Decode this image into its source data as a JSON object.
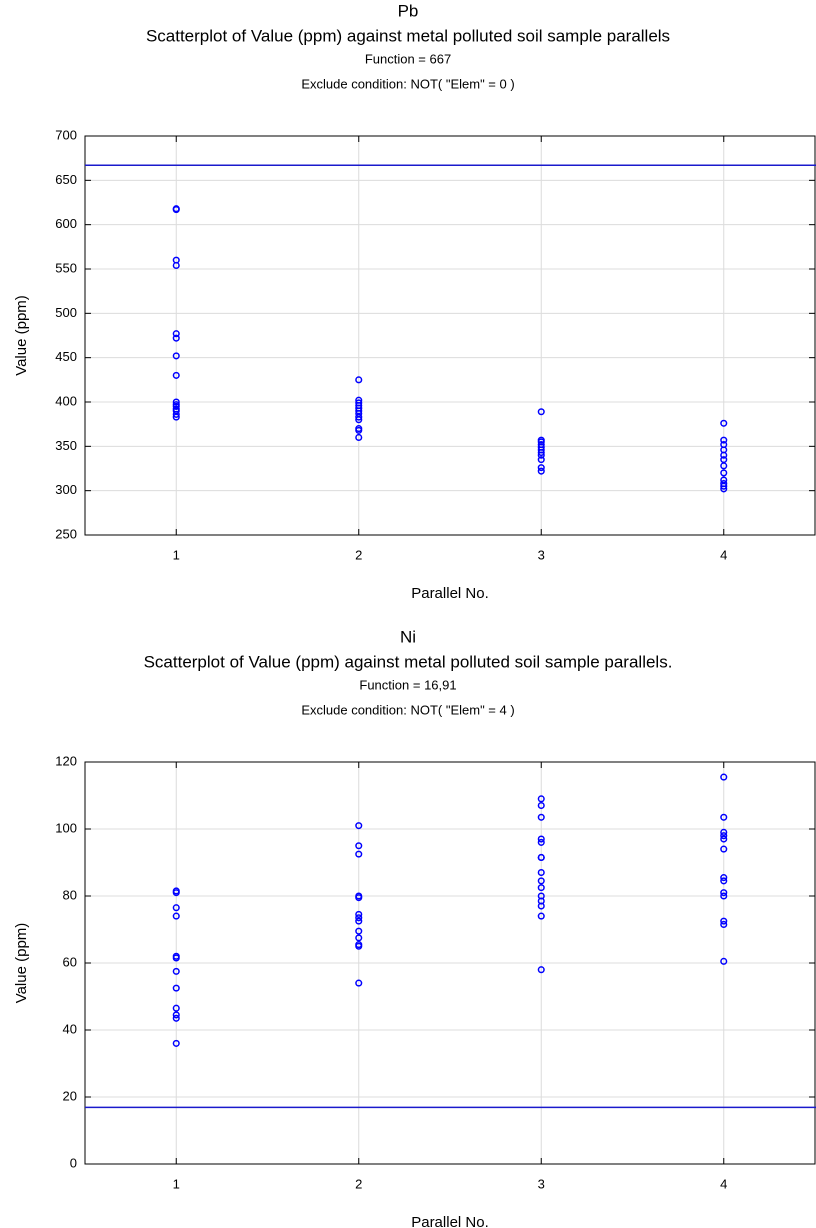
{
  "chart_data": [
    {
      "type": "scatter",
      "element": "Pb",
      "title": "Scatterplot of Value (ppm) against  metal polluted soil sample parallels",
      "subtitle": "Function = 667",
      "note": "Exclude condition: NOT( \"Elem\" = 0 )",
      "xlabel": "Parallel No.",
      "ylabel": "Value (ppm)",
      "reference_line": 667,
      "reference_color": "#1a1acc",
      "color": "#0000ff",
      "grid": true,
      "xlim": [
        0.5,
        4.5
      ],
      "xticks": [
        1,
        2,
        3,
        4
      ],
      "ylim": [
        250,
        700
      ],
      "yticks": [
        250,
        300,
        350,
        400,
        450,
        500,
        550,
        600,
        650,
        700
      ],
      "x": [
        1,
        1,
        1,
        1,
        1,
        1,
        1,
        1,
        1,
        1,
        1,
        1,
        1,
        1,
        1,
        2,
        2,
        2,
        2,
        2,
        2,
        2,
        2,
        2,
        2,
        2,
        2,
        3,
        3,
        3,
        3,
        3,
        3,
        3,
        3,
        3,
        3,
        3,
        4,
        4,
        4,
        4,
        4,
        4,
        4,
        4,
        4,
        4,
        4,
        4
      ],
      "values": [
        618,
        617,
        560,
        554,
        477,
        472,
        452,
        430,
        400,
        397,
        395,
        392,
        390,
        386,
        383,
        425,
        402,
        399,
        396,
        393,
        390,
        387,
        383,
        380,
        370,
        368,
        360,
        389,
        357,
        355,
        352,
        349,
        346,
        343,
        340,
        335,
        326,
        322,
        376,
        357,
        352,
        346,
        340,
        335,
        328,
        320,
        312,
        308,
        305,
        302
      ]
    },
    {
      "type": "scatter",
      "element": "Ni",
      "title": "Scatterplot of Value (ppm) against  metal polluted soil sample parallels.",
      "subtitle": "Function = 16,91",
      "note": "Exclude condition: NOT( \"Elem\" = 4 )",
      "xlabel": "Parallel No.",
      "ylabel": "Value (ppm)",
      "reference_line": 16.91,
      "reference_color": "#1a1acc",
      "color": "#0000ff",
      "grid": true,
      "xlim": [
        0.5,
        4.5
      ],
      "xticks": [
        1,
        2,
        3,
        4
      ],
      "ylim": [
        0,
        120
      ],
      "yticks": [
        0,
        20,
        40,
        60,
        80,
        100,
        120
      ],
      "x": [
        1,
        1,
        1,
        1,
        1,
        1,
        1,
        1,
        1,
        1,
        1,
        1,
        2,
        2,
        2,
        2,
        2,
        2,
        2,
        2,
        2,
        2,
        2,
        2,
        2,
        3,
        3,
        3,
        3,
        3,
        3,
        3,
        3,
        3,
        3,
        3,
        3,
        3,
        3,
        3,
        4,
        4,
        4,
        4,
        4,
        4,
        4,
        4,
        4,
        4,
        4,
        4,
        4
      ],
      "values": [
        81.5,
        81,
        76.5,
        74,
        62,
        61.5,
        57.5,
        52.5,
        46.5,
        44.5,
        43.5,
        36,
        101,
        95,
        92.5,
        80,
        79.5,
        74.5,
        73.5,
        72.5,
        69.5,
        67.5,
        65.5,
        65,
        54,
        109,
        107,
        103.5,
        97,
        96,
        91.5,
        91.5,
        87,
        84.5,
        82.5,
        80,
        78.5,
        77,
        74,
        58,
        115.5,
        103.5,
        99,
        98,
        97,
        94,
        85.5,
        84.5,
        81,
        80,
        72.5,
        71.5,
        60.5
      ]
    }
  ]
}
